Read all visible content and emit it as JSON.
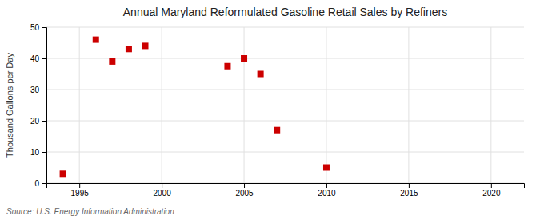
{
  "chart_data": {
    "type": "scatter",
    "title": "Annual Maryland Reformulated Gasoline Retail Sales by Refiners",
    "ylabel": "Thousand Gallons per Day",
    "annotation": "Source: U.S. Energy Information Administration",
    "x": [
      1994,
      1996,
      1997,
      1998,
      1999,
      2004,
      2005,
      2006,
      2007,
      2010
    ],
    "values": [
      3.0,
      46.0,
      39.0,
      43.0,
      44.0,
      37.5,
      40.0,
      35.0,
      17.0,
      5.0
    ],
    "color": "#cc0000",
    "marker": "square",
    "xlim": [
      1993,
      2022
    ],
    "ylim": [
      0,
      50
    ],
    "xticks": [
      1995,
      2000,
      2005,
      2010,
      2015,
      2020
    ],
    "yticks": [
      0,
      10,
      20,
      30,
      40,
      50
    ],
    "grid": true
  }
}
